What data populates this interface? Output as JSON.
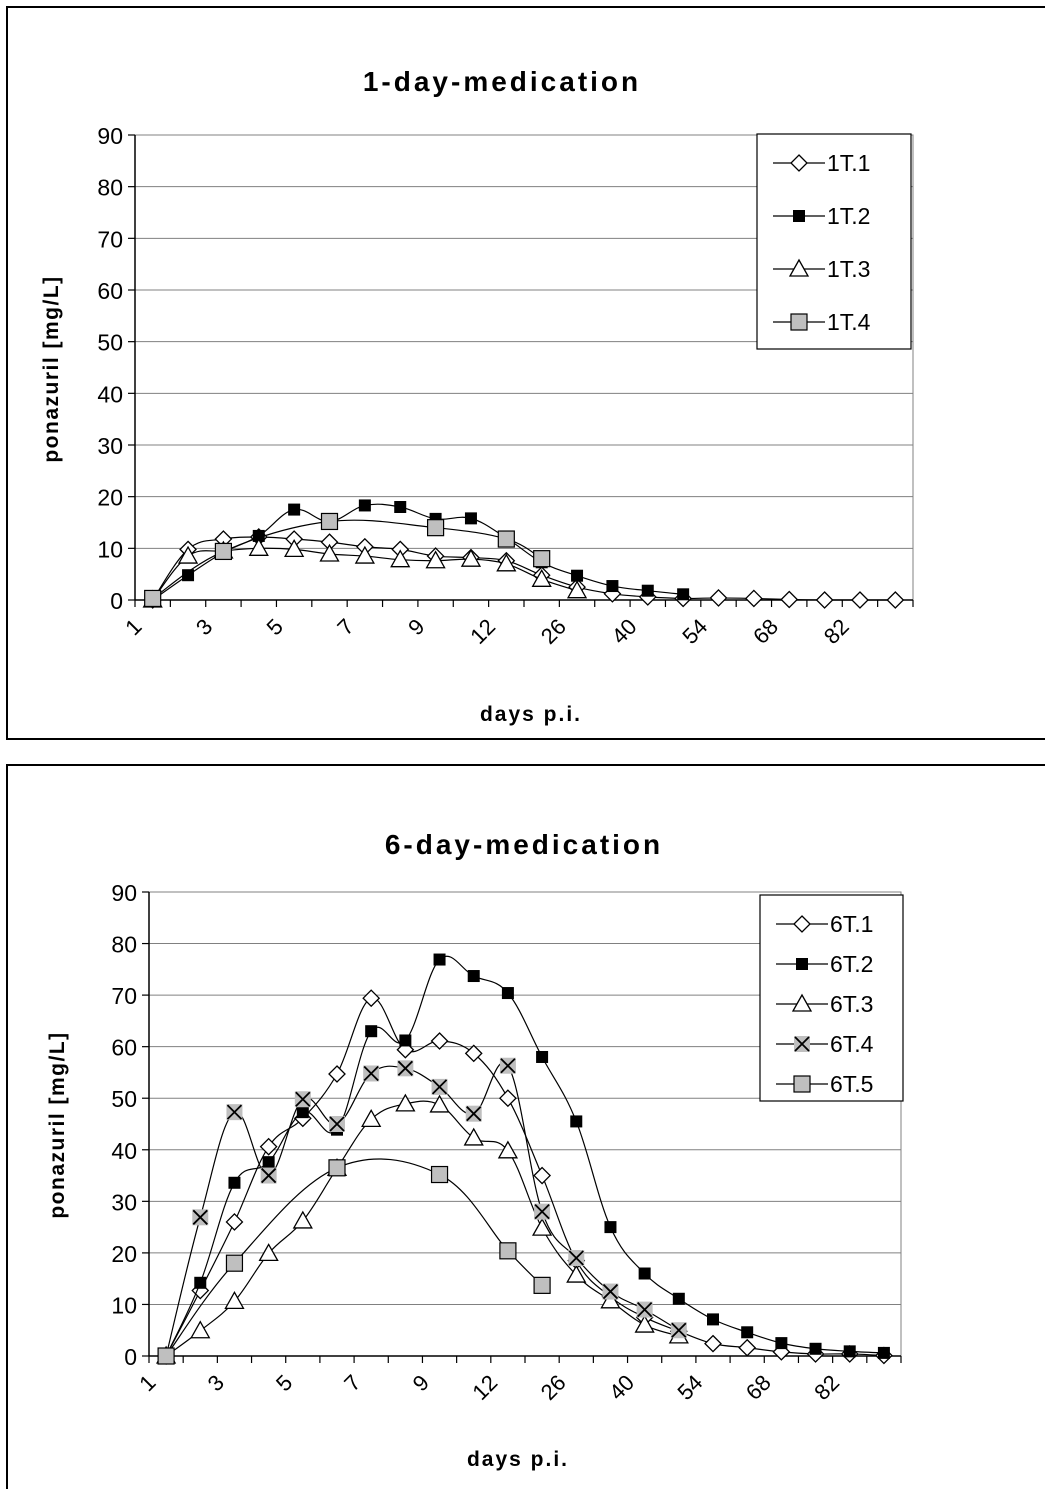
{
  "chart_data": [
    {
      "type": "line",
      "title": "1-day-medication",
      "xlabel": "days p.i.",
      "ylabel": "ponazuril [mg/L]",
      "ylim": [
        0,
        90
      ],
      "yticks": [
        0,
        10,
        20,
        30,
        40,
        50,
        60,
        70,
        80,
        90
      ],
      "grid": true,
      "legend_position": "top-right",
      "x_tick_labels": [
        "1",
        "3",
        "5",
        "7",
        "9",
        "12",
        "26",
        "40",
        "54",
        "68",
        "82"
      ],
      "series": [
        {
          "name": "1T.1",
          "marker": "diamond",
          "values": [
            0,
            9.8,
            11.8,
            12.2,
            11.8,
            11.2,
            10.3,
            9.8,
            8.5,
            8.2,
            7.6,
            4.8,
            2.5,
            1.2,
            0.6,
            0.3,
            0.4,
            0.3,
            0.1,
            0.0,
            0.0,
            0.0
          ]
        },
        {
          "name": "1T.2",
          "marker": "square-filled",
          "values": [
            0,
            4.8,
            9.2,
            12.4,
            17.5,
            15.2,
            18.3,
            18.0,
            15.7,
            15.8,
            12.0,
            7.3,
            4.7,
            2.7,
            1.8,
            1.1,
            null,
            null,
            null,
            null,
            null,
            null
          ]
        },
        {
          "name": "1T.3",
          "marker": "triangle",
          "values": [
            0,
            8.5,
            9.5,
            10.0,
            9.8,
            8.9,
            8.5,
            7.8,
            7.6,
            7.9,
            7.0,
            4.0,
            1.8,
            null,
            null,
            null,
            null,
            null,
            null,
            null,
            null,
            null
          ]
        },
        {
          "name": "1T.4",
          "marker": "square-gray",
          "values": [
            0.3,
            null,
            9.4,
            null,
            null,
            15.2,
            null,
            null,
            14.0,
            null,
            11.8,
            8.0,
            null,
            null,
            null,
            null,
            null,
            null,
            null,
            null,
            null,
            null
          ]
        }
      ]
    },
    {
      "type": "line",
      "title": "6-day-medication",
      "xlabel": "days p.i.",
      "ylabel": "ponazuril [mg/L]",
      "ylim": [
        0,
        90
      ],
      "yticks": [
        0,
        10,
        20,
        30,
        40,
        50,
        60,
        70,
        80,
        90
      ],
      "grid": true,
      "legend_position": "top-right",
      "x_tick_labels": [
        "1",
        "3",
        "5",
        "7",
        "9",
        "12",
        "26",
        "40",
        "54",
        "68",
        "82"
      ],
      "series": [
        {
          "name": "6T.1",
          "marker": "diamond",
          "values": [
            0,
            12.7,
            26.0,
            40.6,
            46.1,
            54.7,
            69.4,
            59.4,
            61.1,
            58.7,
            50.0,
            35.0,
            18.5,
            11.5,
            7.5,
            4.8,
            2.4,
            1.6,
            0.8,
            0.4,
            0.4,
            0.1
          ]
        },
        {
          "name": "6T.2",
          "marker": "square-filled",
          "values": [
            0,
            14.2,
            33.6,
            37.6,
            47.3,
            43.9,
            63.0,
            61.2,
            76.9,
            73.7,
            70.4,
            58.0,
            45.5,
            25.0,
            16.0,
            11.1,
            7.1,
            4.6,
            2.5,
            1.4,
            0.9,
            0.6
          ]
        },
        {
          "name": "6T.3",
          "marker": "triangle",
          "values": [
            0,
            4.9,
            10.6,
            19.9,
            26.2,
            36.4,
            45.9,
            48.9,
            48.7,
            42.3,
            39.8,
            24.8,
            15.7,
            10.7,
            6.0,
            3.9,
            null,
            null,
            null,
            null,
            null,
            null
          ]
        },
        {
          "name": "6T.4",
          "marker": "x-gray",
          "values": [
            0,
            26.9,
            47.3,
            35.0,
            49.8,
            45.0,
            54.8,
            55.8,
            52.2,
            47.0,
            56.3,
            28.0,
            19.0,
            12.5,
            9.0,
            5.0,
            null,
            null,
            null,
            null,
            null,
            null
          ]
        },
        {
          "name": "6T.5",
          "marker": "square-gray",
          "values": [
            0,
            null,
            18.0,
            null,
            null,
            36.5,
            null,
            null,
            35.2,
            null,
            20.4,
            13.7,
            null,
            null,
            null,
            null,
            null,
            null,
            null,
            null,
            null,
            null
          ]
        }
      ]
    }
  ]
}
